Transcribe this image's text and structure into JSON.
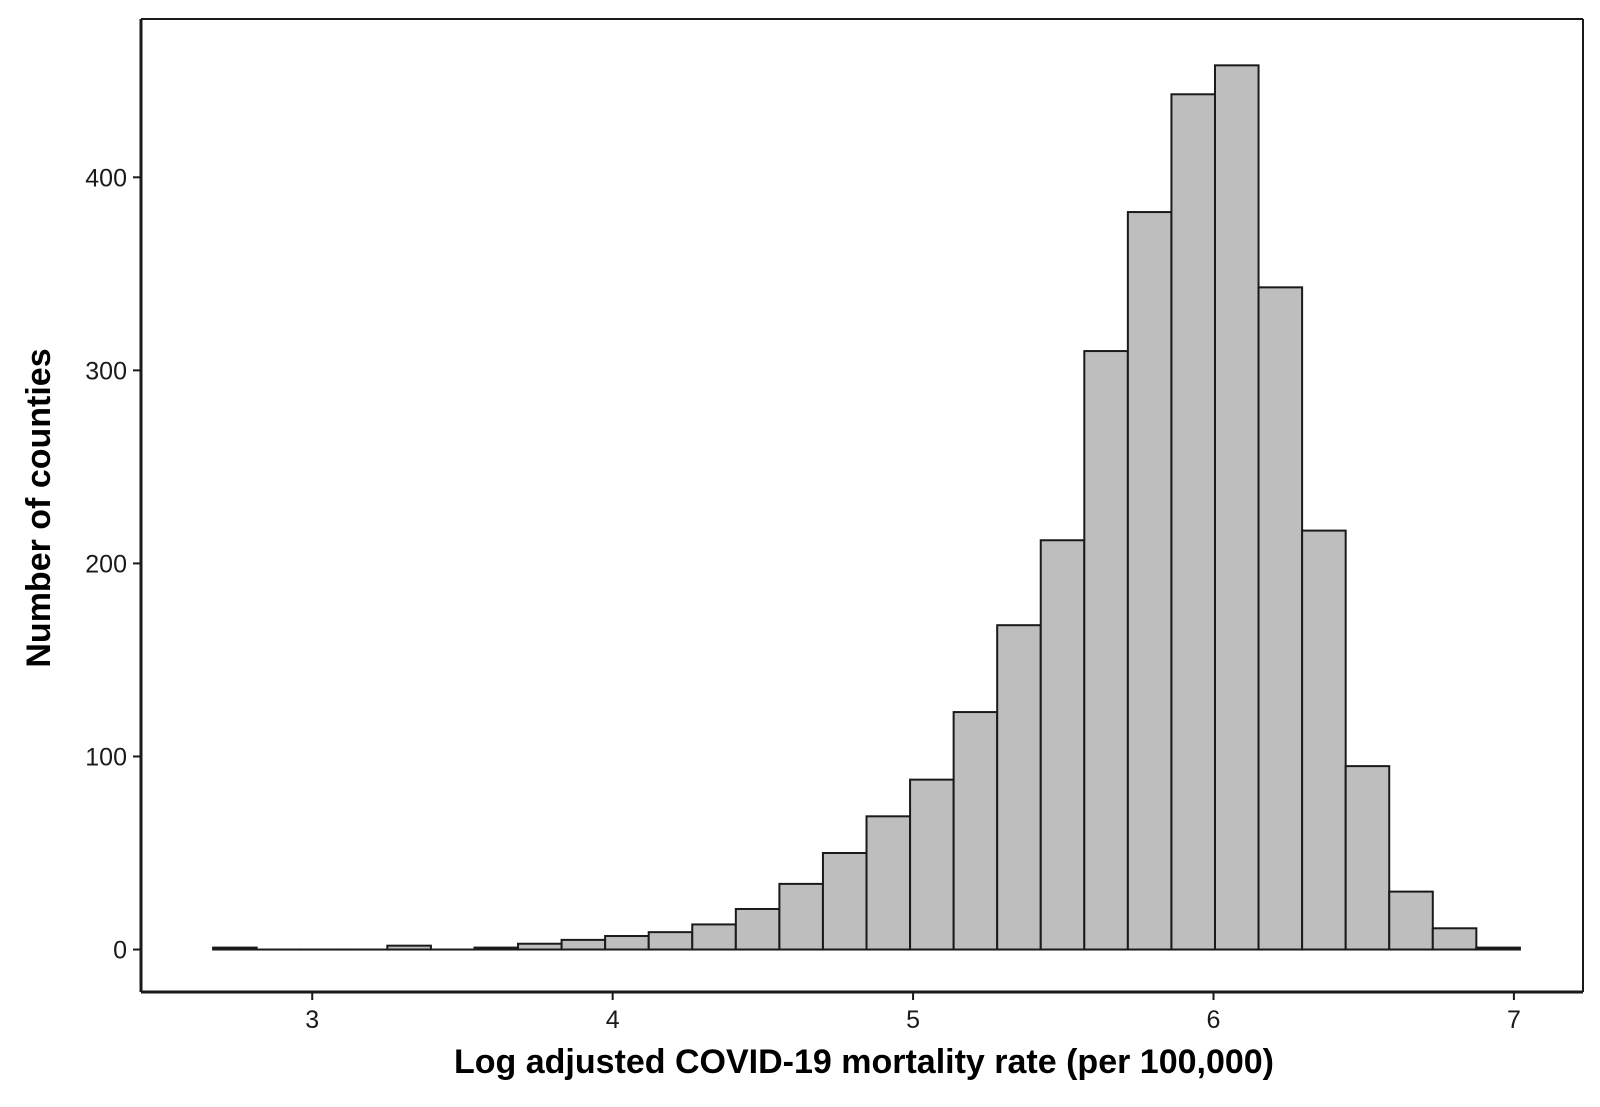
{
  "chart_data": {
    "type": "bar",
    "title": "",
    "xlabel": "Log adjusted COVID-19 mortality rate (per 100,000)",
    "ylabel": "Number of counties",
    "xlim": [
      2.43,
      7.23
    ],
    "ylim": [
      -22,
      482
    ],
    "x_ticks": [
      3,
      4,
      5,
      6,
      7
    ],
    "y_ticks": [
      0,
      100,
      200,
      300,
      400
    ],
    "bin_width": 0.145,
    "bins": [
      {
        "start": 2.67,
        "end": 2.815,
        "count": 1
      },
      {
        "start": 2.815,
        "end": 2.96,
        "count": 0
      },
      {
        "start": 2.96,
        "end": 3.105,
        "count": 0
      },
      {
        "start": 3.105,
        "end": 3.25,
        "count": 0
      },
      {
        "start": 3.25,
        "end": 3.395,
        "count": 2
      },
      {
        "start": 3.395,
        "end": 3.54,
        "count": 0
      },
      {
        "start": 3.54,
        "end": 3.685,
        "count": 1
      },
      {
        "start": 3.685,
        "end": 3.83,
        "count": 3
      },
      {
        "start": 3.83,
        "end": 3.975,
        "count": 5
      },
      {
        "start": 3.975,
        "end": 4.12,
        "count": 7
      },
      {
        "start": 4.12,
        "end": 4.265,
        "count": 9
      },
      {
        "start": 4.265,
        "end": 4.41,
        "count": 13
      },
      {
        "start": 4.41,
        "end": 4.555,
        "count": 21
      },
      {
        "start": 4.555,
        "end": 4.7,
        "count": 34
      },
      {
        "start": 4.7,
        "end": 4.845,
        "count": 50
      },
      {
        "start": 4.845,
        "end": 4.99,
        "count": 69
      },
      {
        "start": 4.99,
        "end": 5.135,
        "count": 88
      },
      {
        "start": 5.135,
        "end": 5.28,
        "count": 123
      },
      {
        "start": 5.28,
        "end": 5.425,
        "count": 168
      },
      {
        "start": 5.425,
        "end": 5.57,
        "count": 212
      },
      {
        "start": 5.57,
        "end": 5.715,
        "count": 310
      },
      {
        "start": 5.715,
        "end": 5.86,
        "count": 382
      },
      {
        "start": 5.86,
        "end": 6.005,
        "count": 443
      },
      {
        "start": 6.005,
        "end": 6.15,
        "count": 458
      },
      {
        "start": 6.15,
        "end": 6.295,
        "count": 343
      },
      {
        "start": 6.295,
        "end": 6.44,
        "count": 217
      },
      {
        "start": 6.44,
        "end": 6.585,
        "count": 95
      },
      {
        "start": 6.585,
        "end": 6.73,
        "count": 30
      },
      {
        "start": 6.73,
        "end": 6.875,
        "count": 11
      },
      {
        "start": 6.875,
        "end": 7.02,
        "count": 1
      }
    ],
    "bar_fill": "#bebebe",
    "bar_stroke": "#1a1a1a",
    "grid": false,
    "legend": "none"
  }
}
